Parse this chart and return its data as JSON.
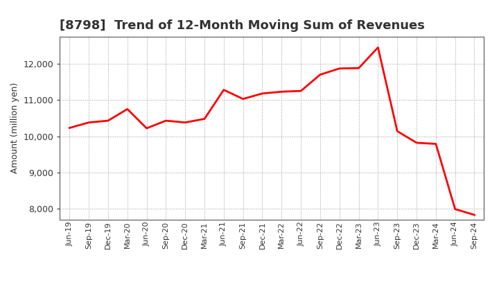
{
  "title": "[8798]  Trend of 12-Month Moving Sum of Revenues",
  "ylabel": "Amount (million yen)",
  "line_color": "#FF0000",
  "line_width": 2.0,
  "background_color": "#FFFFFF",
  "grid_color": "#999999",
  "title_color": "#333333",
  "ylim": [
    7700,
    12750
  ],
  "yticks": [
    8000,
    9000,
    10000,
    11000,
    12000
  ],
  "x_labels": [
    "Jun-19",
    "Sep-19",
    "Dec-19",
    "Mar-20",
    "Jun-20",
    "Sep-20",
    "Dec-20",
    "Mar-21",
    "Jun-21",
    "Sep-21",
    "Dec-21",
    "Mar-22",
    "Jun-22",
    "Sep-22",
    "Dec-22",
    "Mar-23",
    "Jun-23",
    "Sep-23",
    "Dec-23",
    "Mar-24",
    "Jun-24",
    "Sep-24"
  ],
  "values": [
    10230,
    10380,
    10430,
    10750,
    10220,
    10430,
    10380,
    10480,
    11280,
    11030,
    11180,
    11230,
    11250,
    11700,
    11870,
    11880,
    12450,
    10140,
    9820,
    9790,
    7990,
    7830
  ],
  "title_fontsize": 13,
  "label_fontsize": 9,
  "tick_fontsize": 9,
  "xtick_fontsize": 8
}
